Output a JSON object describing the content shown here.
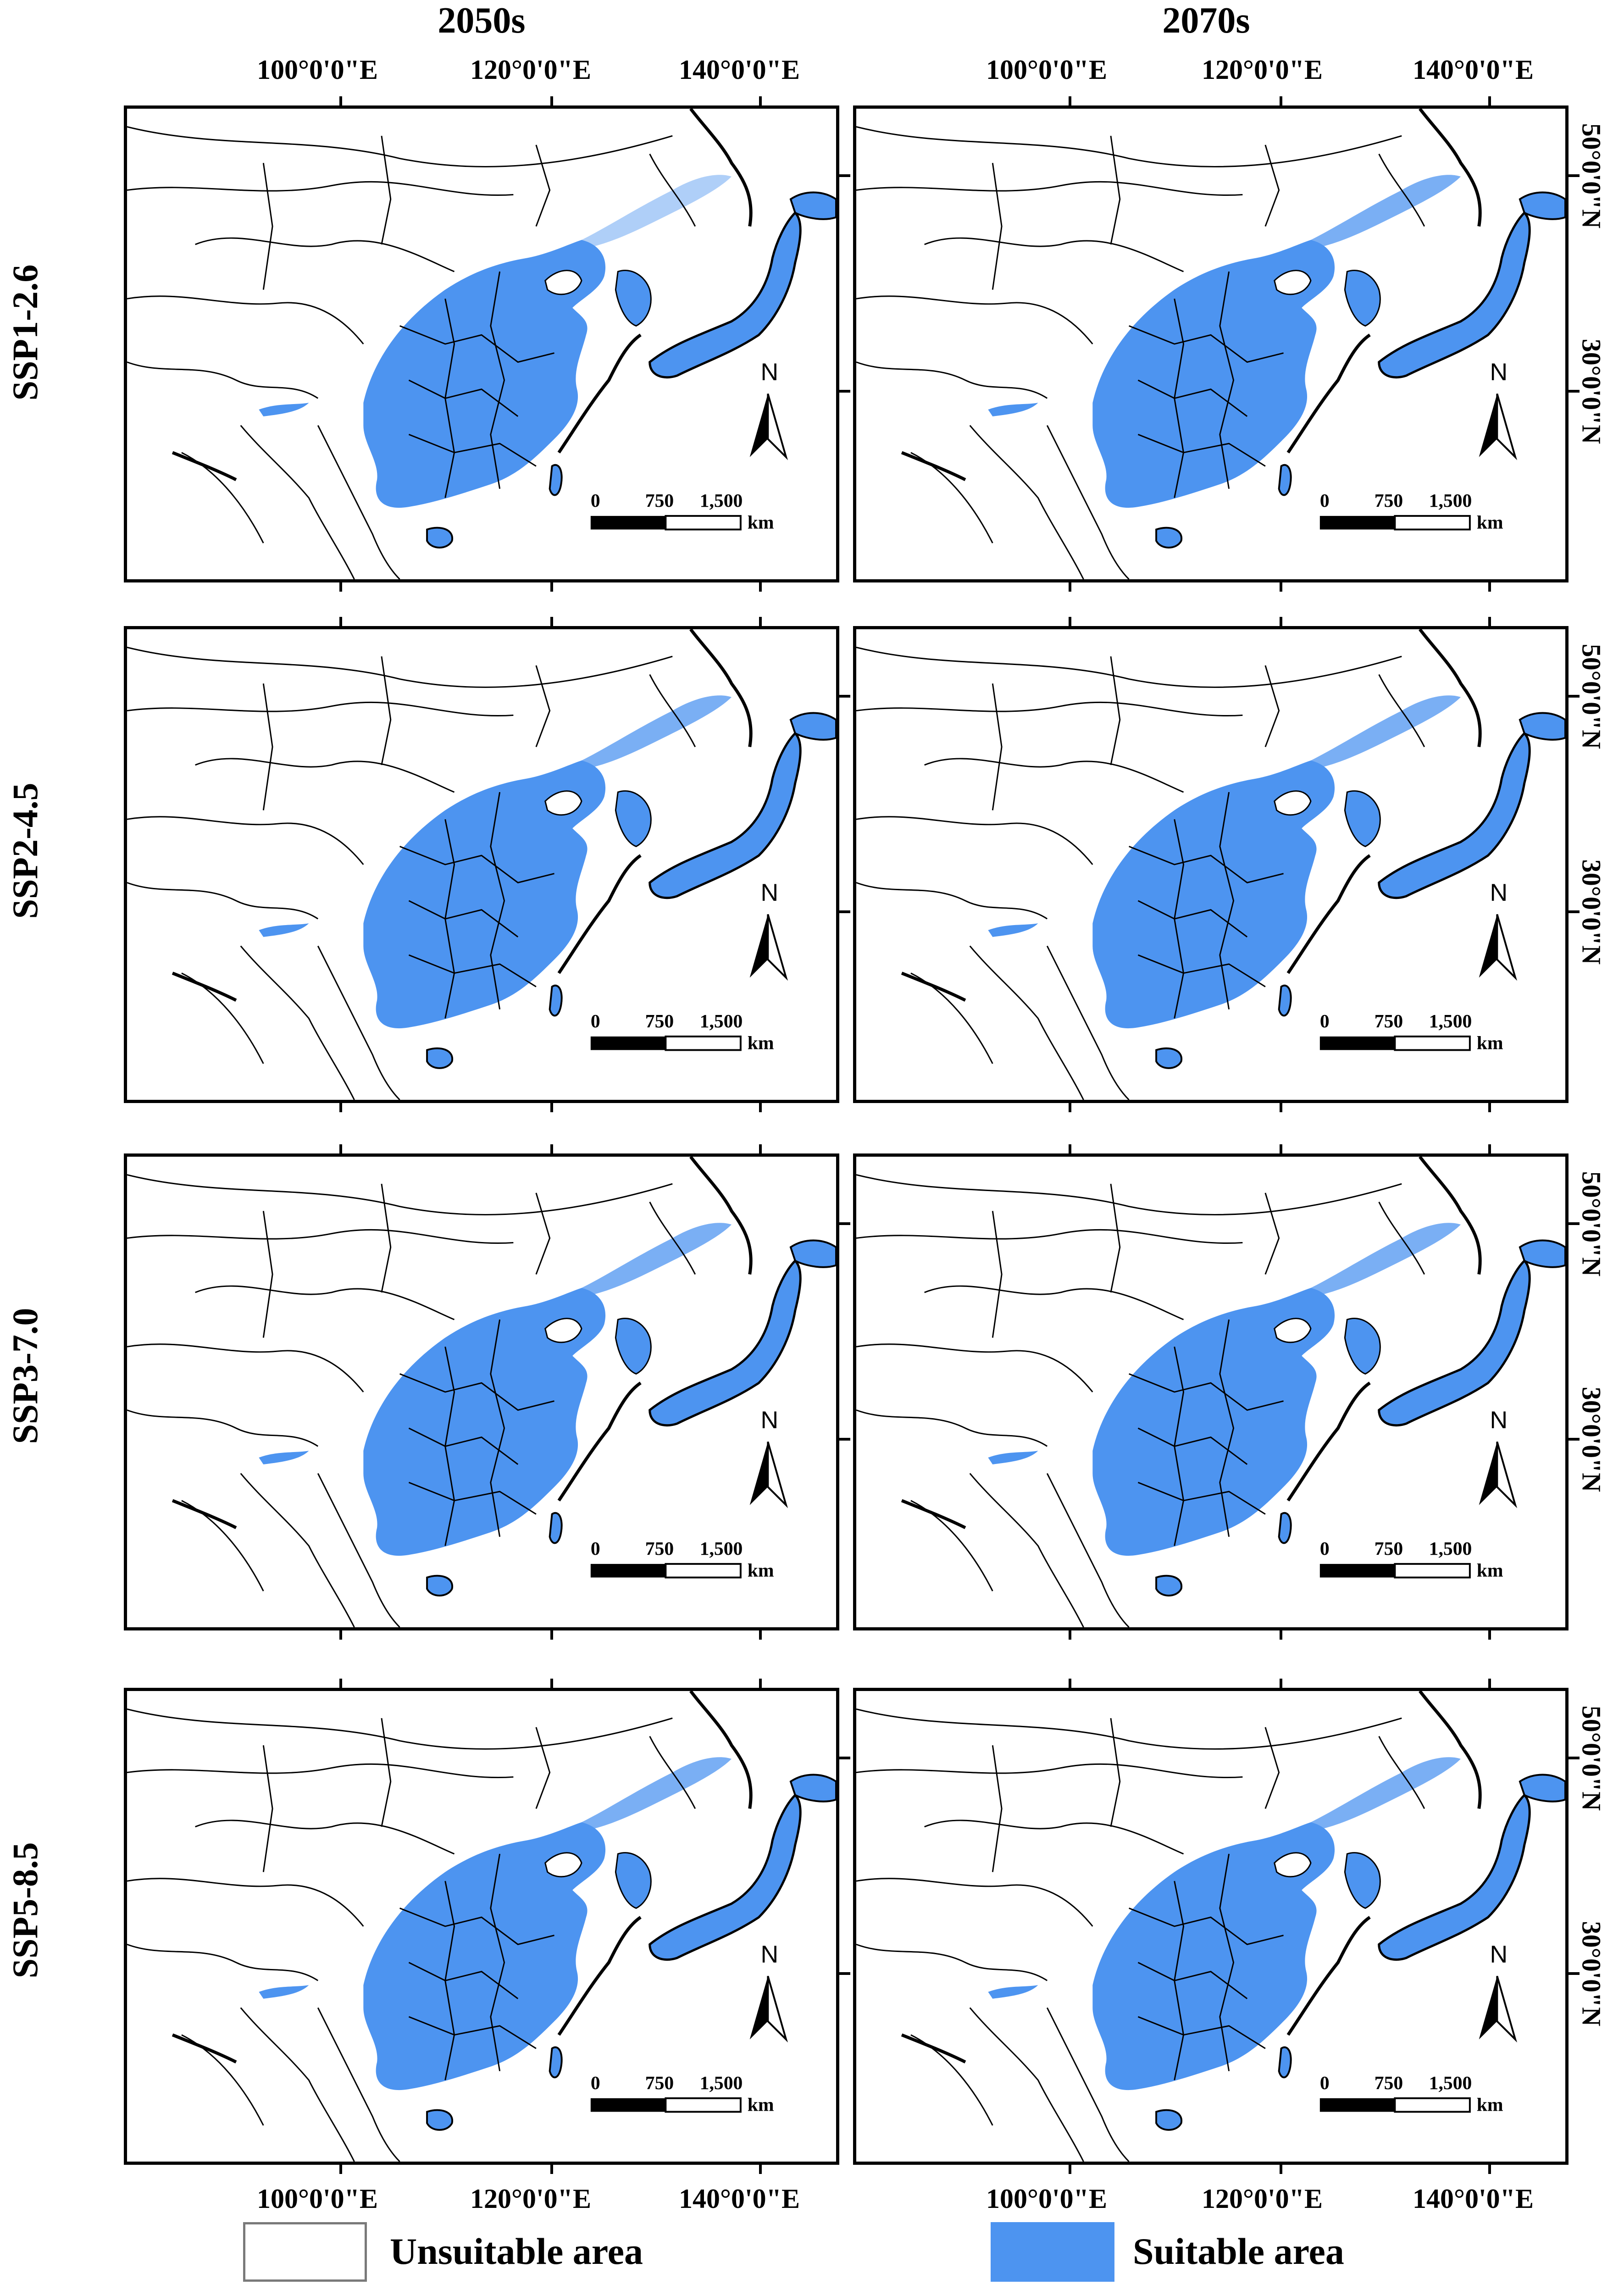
{
  "columns": [
    "2050s",
    "2070s"
  ],
  "rows": [
    "SSP1-2.6",
    "SSP2-4.5",
    "SSP3-7.0",
    "SSP5-8.5"
  ],
  "lon_ticks": [
    "100°0'0\"E",
    "120°0'0\"E",
    "140°0'0\"E"
  ],
  "lat_ticks": [
    "50°0'0\"N",
    "30°0'0\"N"
  ],
  "scale": {
    "zero": "0",
    "mid": "750",
    "max": "1,500",
    "unit": "km"
  },
  "north_label": "N",
  "legend": {
    "unsuitable": "Unsuitable area",
    "suitable": "Suitable area"
  },
  "colors": {
    "suitable": "#4d94f0",
    "unsuitable": "#ffffff",
    "border": "#000000"
  }
}
